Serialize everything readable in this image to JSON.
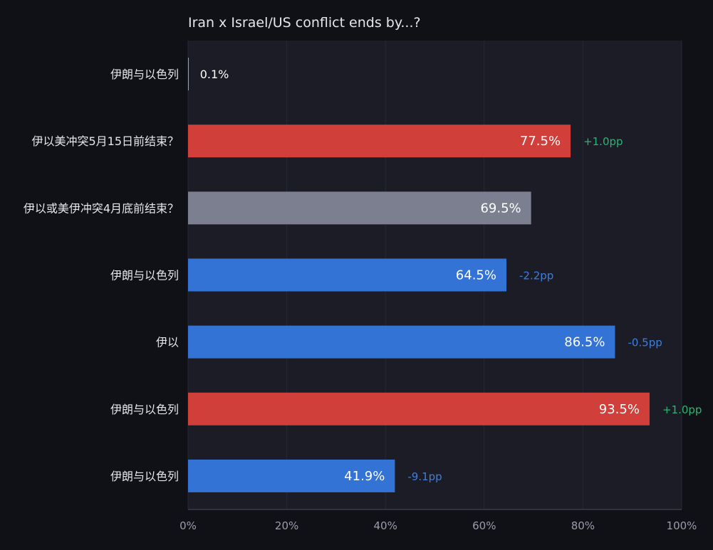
{
  "chart_data": {
    "type": "bar",
    "orientation": "horizontal",
    "title": "Iran x Israel/US conflict ends by...?",
    "xlabel": "",
    "ylabel": "",
    "xlim": [
      0,
      100
    ],
    "x_ticks": [
      0,
      20,
      40,
      60,
      80,
      100
    ],
    "x_tick_labels": [
      "0%",
      "20%",
      "40%",
      "60%",
      "80%",
      "100%"
    ],
    "grid": true,
    "legend": "none",
    "categories": [
      "伊朗与以色列",
      "伊以美冲突5月15日前结束？",
      "伊以或美伊冲突4月底前结束？",
      "伊朗与以色列",
      "伊以",
      "伊朗与以色列",
      "伊朗与以色列"
    ],
    "values": [
      0.1,
      77.5,
      69.5,
      64.5,
      86.5,
      93.5,
      41.9
    ],
    "value_labels": [
      "0.1%",
      "77.5%",
      "69.5%",
      "64.5%",
      "86.5%",
      "93.5%",
      "41.9%"
    ],
    "change_labels": [
      "",
      "+1.0pp",
      "",
      "-2.2pp",
      "-0.5pp",
      "+1.0pp",
      "-9.1pp"
    ],
    "bar_colors": [
      "#9aa0ad",
      "#d03f3a",
      "#7b7f8f",
      "#3473d6",
      "#3473d6",
      "#d03f3a",
      "#3473d6"
    ],
    "change_colors": [
      "",
      "#2bb673",
      "",
      "#3d7fe0",
      "#3d7fe0",
      "#2bb673",
      "#3d7fe0"
    ]
  },
  "colors": {
    "background": "#101116",
    "plot_background": "#1b1c25",
    "text": "#e6e6ea",
    "tick_text": "#9a9cab",
    "grid": "#262835",
    "axis": "#3a3c4a"
  }
}
